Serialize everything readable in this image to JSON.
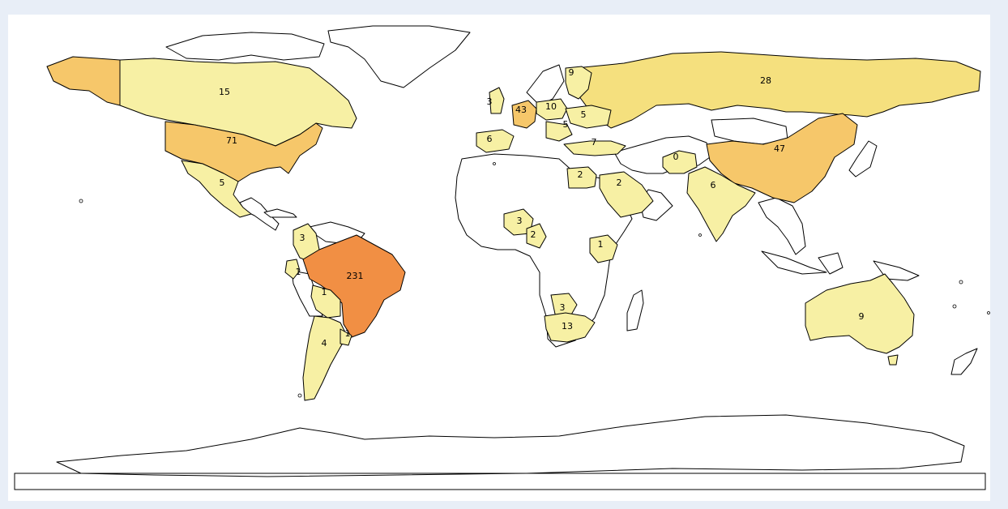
{
  "map": {
    "colors": {
      "background": "#e8eef7",
      "panel": "#ffffff",
      "no_data": "#ffffff",
      "scale": [
        "#f7f0a4",
        "#f5e07e",
        "#f6c76a",
        "#f4a552",
        "#f18f44"
      ]
    },
    "countries": [
      {
        "id": "canada",
        "name": "Canada",
        "value": 15,
        "label": "15"
      },
      {
        "id": "usa",
        "name": "United States",
        "value": 71,
        "label": "71"
      },
      {
        "id": "mexico",
        "name": "Mexico",
        "value": 5,
        "label": "5"
      },
      {
        "id": "colombia",
        "name": "Colombia",
        "value": 3,
        "label": "3"
      },
      {
        "id": "ecuador",
        "name": "Ecuador",
        "value": 1,
        "label": "1"
      },
      {
        "id": "brazil",
        "name": "Brazil",
        "value": 231,
        "label": "231"
      },
      {
        "id": "bolivia",
        "name": "Bolivia",
        "value": 1,
        "label": "1"
      },
      {
        "id": "argentina",
        "name": "Argentina",
        "value": 4,
        "label": "4"
      },
      {
        "id": "uruguay",
        "name": "Uruguay",
        "value": 1,
        "label": "1"
      },
      {
        "id": "russia",
        "name": "Russia",
        "value": 28,
        "label": "28"
      },
      {
        "id": "china",
        "name": "China",
        "value": 47,
        "label": "47"
      },
      {
        "id": "india",
        "name": "India",
        "value": 6,
        "label": "6"
      },
      {
        "id": "afghanistan",
        "name": "Afghanistan",
        "value": 0,
        "label": "0"
      },
      {
        "id": "saudi",
        "name": "Saudi Arabia",
        "value": 2,
        "label": "2"
      },
      {
        "id": "egypt",
        "name": "Egypt",
        "value": 2,
        "label": "2"
      },
      {
        "id": "turkey",
        "name": "Turkey",
        "value": 7,
        "label": "7"
      },
      {
        "id": "germany",
        "name": "Germany",
        "value": 43,
        "label": "43"
      },
      {
        "id": "poland",
        "name": "Poland",
        "value": 10,
        "label": "10"
      },
      {
        "id": "ukraine",
        "name": "Ukraine",
        "value": 5,
        "label": "5"
      },
      {
        "id": "romania",
        "name": "Romania",
        "value": 5,
        "label": "5"
      },
      {
        "id": "spain",
        "name": "Spain",
        "value": 6,
        "label": "6"
      },
      {
        "id": "nigeria",
        "name": "Nigeria",
        "value": 3,
        "label": "3"
      },
      {
        "id": "cameroon",
        "name": "Cameroon",
        "value": 2,
        "label": "2"
      },
      {
        "id": "kenya",
        "name": "Kenya",
        "value": 1,
        "label": "1"
      },
      {
        "id": "zimbabwe",
        "name": "Zimbabwe",
        "value": 3,
        "label": "3"
      },
      {
        "id": "south-africa",
        "name": "South Africa",
        "value": 13,
        "label": "13"
      },
      {
        "id": "australia",
        "name": "Australia",
        "value": 9,
        "label": "9"
      },
      {
        "id": "sweden",
        "name": "Sweden",
        "value": 9,
        "label": "9"
      },
      {
        "id": "uk",
        "name": "United Kingdom",
        "value": 3,
        "label": "3"
      }
    ]
  }
}
